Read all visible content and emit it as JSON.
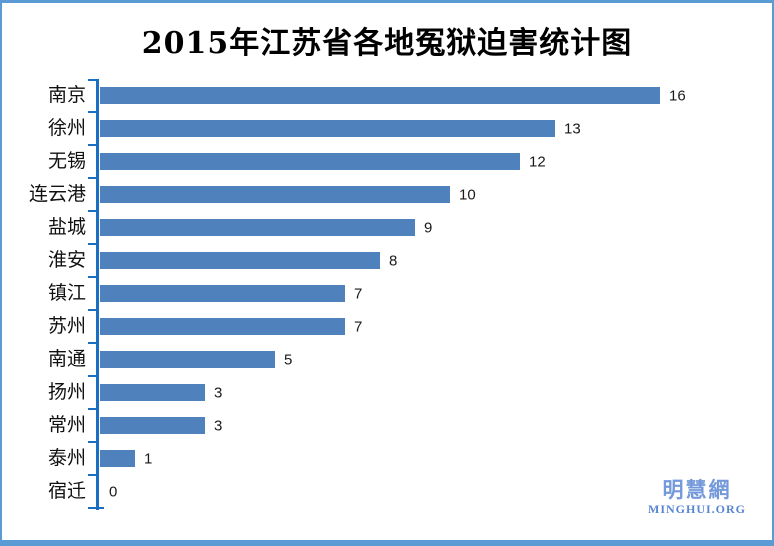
{
  "chart_data": {
    "type": "bar",
    "orientation": "horizontal",
    "title": "2015年江苏省各地冤狱迫害统计图",
    "categories": [
      "南京",
      "徐州",
      "无锡",
      "连云港",
      "盐城",
      "淮安",
      "镇江",
      "苏州",
      "南通",
      "扬州",
      "常州",
      "泰州",
      "宿迁"
    ],
    "values": [
      16,
      13,
      12,
      10,
      9,
      8,
      7,
      7,
      5,
      3,
      3,
      1,
      0
    ],
    "xlabel": "",
    "ylabel": "",
    "xlim": [
      0,
      17
    ],
    "grid": false,
    "legend_position": "none",
    "value_labels_shown": true,
    "bar_color": "#4F81BD",
    "axis_color": "#1B6FC2",
    "frame_border_color": "#5B9BD5"
  },
  "watermark": {
    "chinese": "明慧網",
    "english": "MINGHUI.ORG",
    "color": "#7499DB"
  }
}
